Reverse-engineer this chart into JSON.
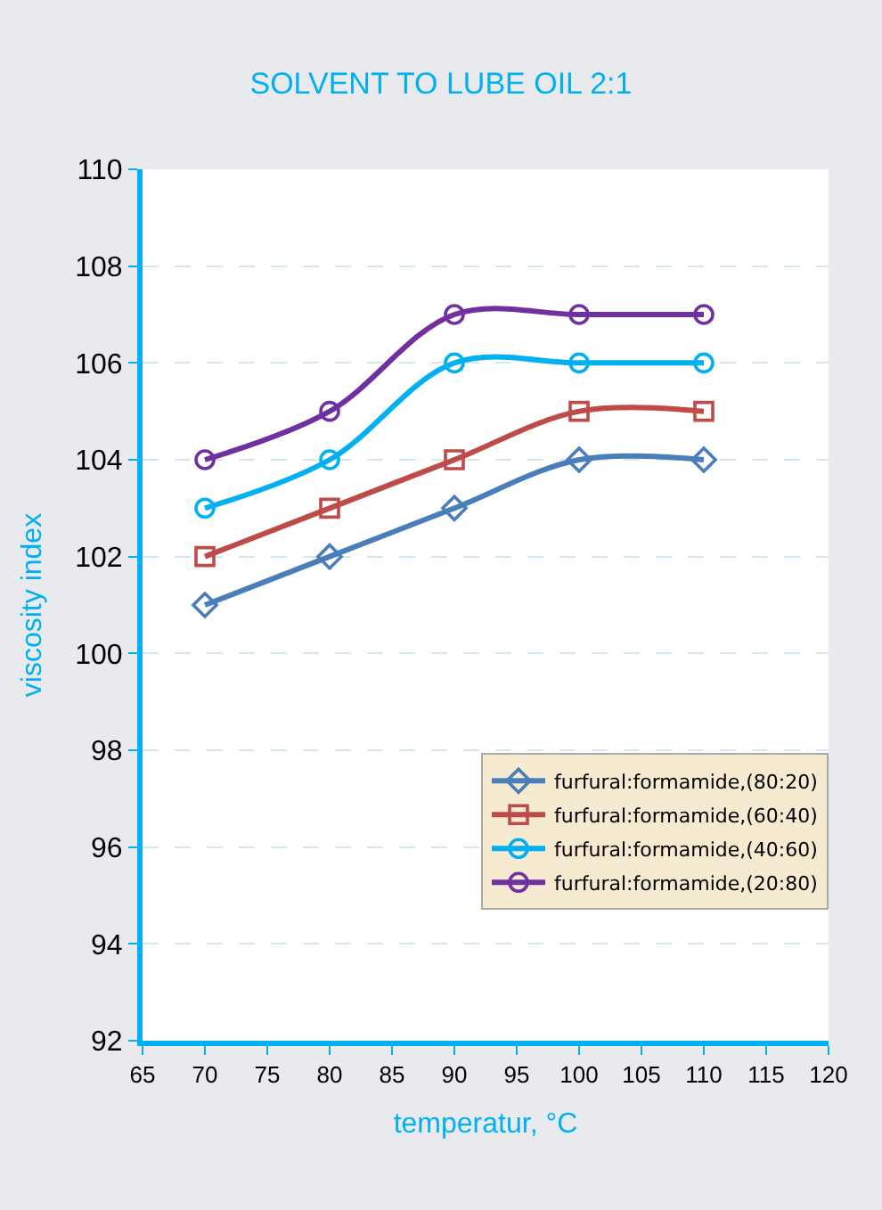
{
  "chart_data": {
    "type": "line",
    "title": "SOLVENT TO LUBE OIL 2:1",
    "xlabel": "temperatur, °C",
    "ylabel": "viscosity index",
    "x": [
      70,
      80,
      90,
      100,
      110
    ],
    "series": [
      {
        "name": "furfural:formamide,(80:20)",
        "color": "#4a7ebb",
        "marker": "diamond",
        "values": [
          101,
          102,
          103,
          104,
          104
        ]
      },
      {
        "name": "furfural:formamide,(60:40)",
        "color": "#be4b48",
        "marker": "square",
        "values": [
          102,
          103,
          104,
          105,
          105
        ]
      },
      {
        "name": "furfural:formamide,(40:60)",
        "color": "#00b0f0",
        "marker": "circle",
        "values": [
          103,
          104,
          106,
          106,
          106
        ]
      },
      {
        "name": "furfural:formamide,(20:80)",
        "color": "#7030a0",
        "marker": "circle",
        "values": [
          104,
          105,
          107,
          107,
          107
        ]
      }
    ],
    "xlim": [
      65,
      120
    ],
    "xticks": [
      65,
      70,
      75,
      80,
      85,
      90,
      95,
      100,
      105,
      110,
      115,
      120
    ],
    "ylim": [
      92,
      110
    ],
    "yticks": [
      92,
      94,
      96,
      98,
      100,
      102,
      104,
      106,
      108,
      110
    ],
    "grid": "y",
    "legend": "bottom right",
    "line_style": "solid"
  }
}
